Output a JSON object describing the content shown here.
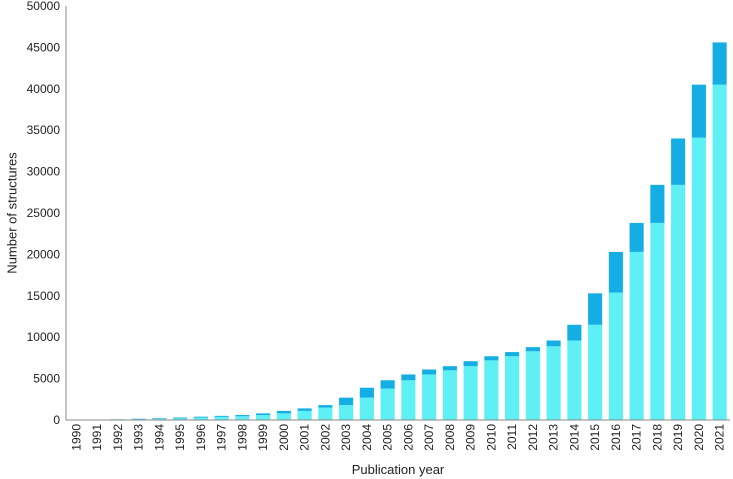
{
  "chart_data": {
    "type": "bar",
    "stacked": true,
    "title": "",
    "xlabel": "Publication year",
    "ylabel": "Number of structures",
    "ylim": [
      0,
      50000
    ],
    "yticks": [
      0,
      5000,
      10000,
      15000,
      20000,
      25000,
      30000,
      35000,
      40000,
      45000,
      50000
    ],
    "ytick_labels": [
      "0",
      "5000",
      "10000",
      "15000",
      "20000",
      "25000",
      "30000",
      "35000",
      "40000",
      "45000",
      "50000"
    ],
    "grid": false,
    "legend": "none",
    "categories": [
      "1990",
      "1991",
      "1992",
      "1993",
      "1994",
      "1995",
      "1996",
      "1997",
      "1998",
      "1999",
      "2000",
      "2001",
      "2002",
      "2003",
      "2004",
      "2005",
      "2006",
      "2007",
      "2008",
      "2009",
      "2010",
      "2011",
      "2012",
      "2013",
      "2014",
      "2015",
      "2016",
      "2017",
      "2018",
      "2019",
      "2020",
      "2021"
    ],
    "series": [
      {
        "color": "#5ef0f5",
        "values": [
          10,
          20,
          40,
          80,
          120,
          200,
          300,
          380,
          450,
          600,
          800,
          1100,
          1500,
          1800,
          2700,
          3800,
          4800,
          5500,
          6000,
          6500,
          7200,
          7700,
          8300,
          8900,
          9600,
          11500,
          15400,
          20300,
          23800,
          28400,
          34100,
          40500
        ]
      },
      {
        "color": "#14aee4",
        "values": [
          10,
          20,
          40,
          70,
          80,
          100,
          100,
          120,
          150,
          200,
          300,
          300,
          300,
          900,
          1200,
          1000,
          700,
          600,
          500,
          600,
          500,
          500,
          500,
          700,
          1900,
          3800,
          4900,
          3500,
          4600,
          5600,
          6400,
          5100
        ]
      }
    ]
  }
}
